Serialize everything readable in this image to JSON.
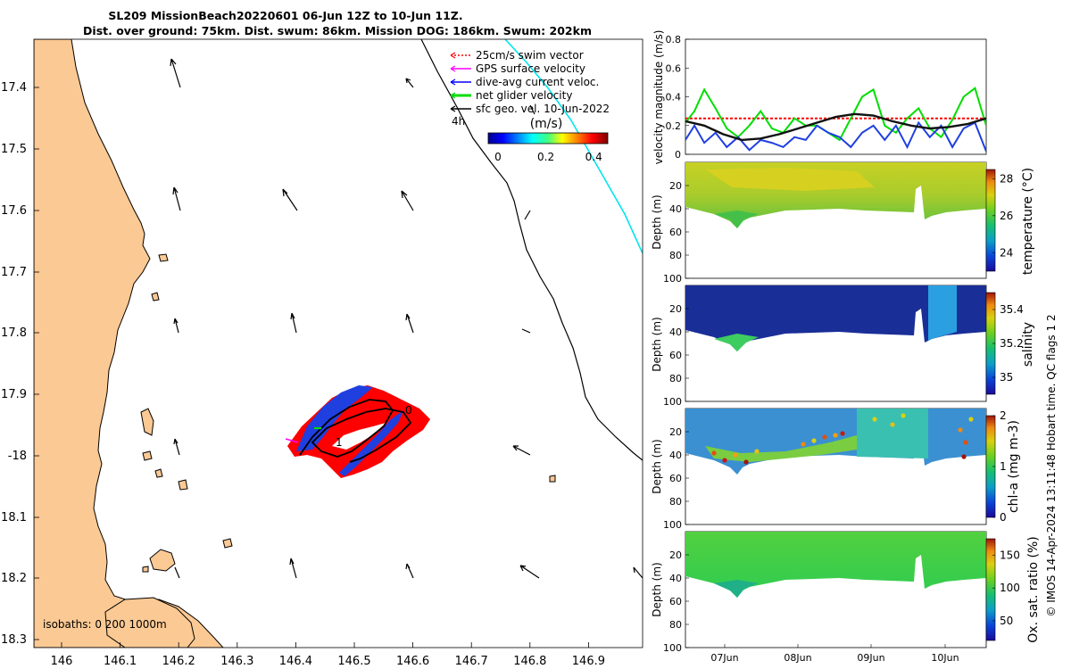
{
  "title_line1": "SL209 MissionBeach20220601 06-Jun 12Z to 10-Jun 11Z.",
  "title_line2": "Dist. over ground: 75km. Dist. swum: 86km. Mission DOG: 186km. Swum: 202km",
  "side_caption": "© IMOS 14-Apr-2024 13:11:48 Hobart time. QC flags 1  2",
  "colors": {
    "land": "#fbc994",
    "track_red": "#ff0000",
    "track_blue": "#1f3fdf",
    "isobath_200": "#000000",
    "isobath_1000": "#00e5ee",
    "glider_green": "#00dd00",
    "speed_black": "#111111"
  },
  "map": {
    "lat_ticks": [
      "17.4",
      "17.5",
      "17.6",
      "17.7",
      "17.8",
      "17.9",
      "-18",
      "18.1",
      "18.2",
      "18.3"
    ],
    "lon_ticks": [
      "146",
      "146.1",
      "146.2",
      "146.3",
      "146.4",
      "146.5",
      "146.6",
      "146.7",
      "146.8",
      "146.9"
    ],
    "legend": [
      {
        "label": "25cm/s swim vector",
        "color": "#ff0000",
        "style": "dotted"
      },
      {
        "label": "GPS surface velocity",
        "color": "#ff00ff",
        "style": "solid"
      },
      {
        "label": "dive-avg current veloc.",
        "color": "#0000ff",
        "style": "solid"
      },
      {
        "label": "net glider velocity",
        "color": "#00dd00",
        "style": "thick"
      },
      {
        "label": "sfc geo. vel. 10-Jun-2022",
        "color": "#000000",
        "style": "solid"
      }
    ],
    "time_label": "4h",
    "colorbar_title": "(m/s)",
    "colorbar_ticks": [
      "0",
      "0.2",
      "0.4"
    ],
    "isobath_note": "isobaths: 0   200  1000m",
    "track_labels": [
      "0",
      "1"
    ]
  },
  "chart_data": [
    {
      "type": "line",
      "ylabel": "velocity magnitude (m/s)",
      "ylim": [
        0,
        0.8
      ],
      "yticks": [
        "0",
        "0.2",
        "0.4",
        "0.6",
        "0.8"
      ],
      "xlim_days": [
        6.5,
        10.5
      ],
      "series": [
        {
          "name": "swim",
          "color": "#ff0000",
          "x": [
            6.5,
            10.5
          ],
          "values": [
            0.25,
            0.25
          ]
        },
        {
          "name": "net glider",
          "color": "#00dd00",
          "x": [
            6.5,
            6.62,
            6.75,
            6.9,
            7.05,
            7.2,
            7.35,
            7.5,
            7.65,
            7.8,
            7.95,
            8.1,
            8.25,
            8.4,
            8.55,
            8.7,
            8.85,
            9.0,
            9.15,
            9.3,
            9.45,
            9.6,
            9.75,
            9.9,
            10.05,
            10.2,
            10.35,
            10.5
          ],
          "values": [
            0.22,
            0.3,
            0.45,
            0.32,
            0.18,
            0.12,
            0.2,
            0.3,
            0.18,
            0.15,
            0.25,
            0.2,
            0.2,
            0.15,
            0.1,
            0.25,
            0.4,
            0.45,
            0.2,
            0.15,
            0.25,
            0.32,
            0.18,
            0.12,
            0.24,
            0.4,
            0.46,
            0.2
          ]
        },
        {
          "name": "dive-avg current",
          "color": "#1f3fdf",
          "x": [
            6.5,
            6.62,
            6.75,
            6.9,
            7.05,
            7.2,
            7.35,
            7.5,
            7.65,
            7.8,
            7.95,
            8.1,
            8.25,
            8.4,
            8.55,
            8.7,
            8.85,
            9.0,
            9.15,
            9.3,
            9.45,
            9.6,
            9.75,
            9.9,
            10.05,
            10.2,
            10.35,
            10.5
          ],
          "values": [
            0.1,
            0.2,
            0.08,
            0.15,
            0.05,
            0.12,
            0.03,
            0.1,
            0.08,
            0.05,
            0.12,
            0.1,
            0.2,
            0.15,
            0.12,
            0.05,
            0.15,
            0.2,
            0.1,
            0.2,
            0.05,
            0.22,
            0.12,
            0.2,
            0.05,
            0.18,
            0.22,
            0.02
          ]
        },
        {
          "name": "mean speed",
          "color": "#111111",
          "x": [
            6.5,
            6.75,
            7.0,
            7.25,
            7.5,
            7.75,
            8.0,
            8.25,
            8.5,
            8.75,
            9.0,
            9.25,
            9.5,
            9.75,
            10.0,
            10.25,
            10.5
          ],
          "values": [
            0.23,
            0.2,
            0.14,
            0.1,
            0.11,
            0.14,
            0.18,
            0.22,
            0.26,
            0.28,
            0.27,
            0.23,
            0.2,
            0.18,
            0.19,
            0.21,
            0.25
          ]
        }
      ]
    },
    {
      "type": "heatmap",
      "ylabel": "Depth (m)",
      "clabel": "temperature (°C)",
      "yticks": [
        "20",
        "40",
        "60",
        "80",
        "100"
      ],
      "cticks": [
        "24",
        "26",
        "28"
      ],
      "clim": [
        23,
        28.5
      ]
    },
    {
      "type": "heatmap",
      "ylabel": "Depth (m)",
      "clabel": "salinity",
      "yticks": [
        "20",
        "40",
        "60",
        "80",
        "100"
      ],
      "cticks": [
        "35",
        "35.2",
        "35.4"
      ],
      "clim": [
        34.9,
        35.5
      ]
    },
    {
      "type": "heatmap",
      "ylabel": "Depth (m)",
      "clabel": "chl-a (mg m-3)",
      "yticks": [
        "20",
        "40",
        "60",
        "80",
        "100"
      ],
      "cticks": [
        "0",
        "1",
        "2"
      ],
      "clim": [
        0,
        2
      ]
    },
    {
      "type": "heatmap",
      "ylabel": "Depth (m)",
      "clabel": "Ox. sat. ratio (%)",
      "yticks": [
        "20",
        "40",
        "60",
        "80",
        "100"
      ],
      "cticks": [
        "50",
        "100",
        "150"
      ],
      "clim": [
        20,
        175
      ],
      "xticks": [
        "07Jun",
        "08Jun",
        "09Jun",
        "10Jun"
      ]
    }
  ]
}
